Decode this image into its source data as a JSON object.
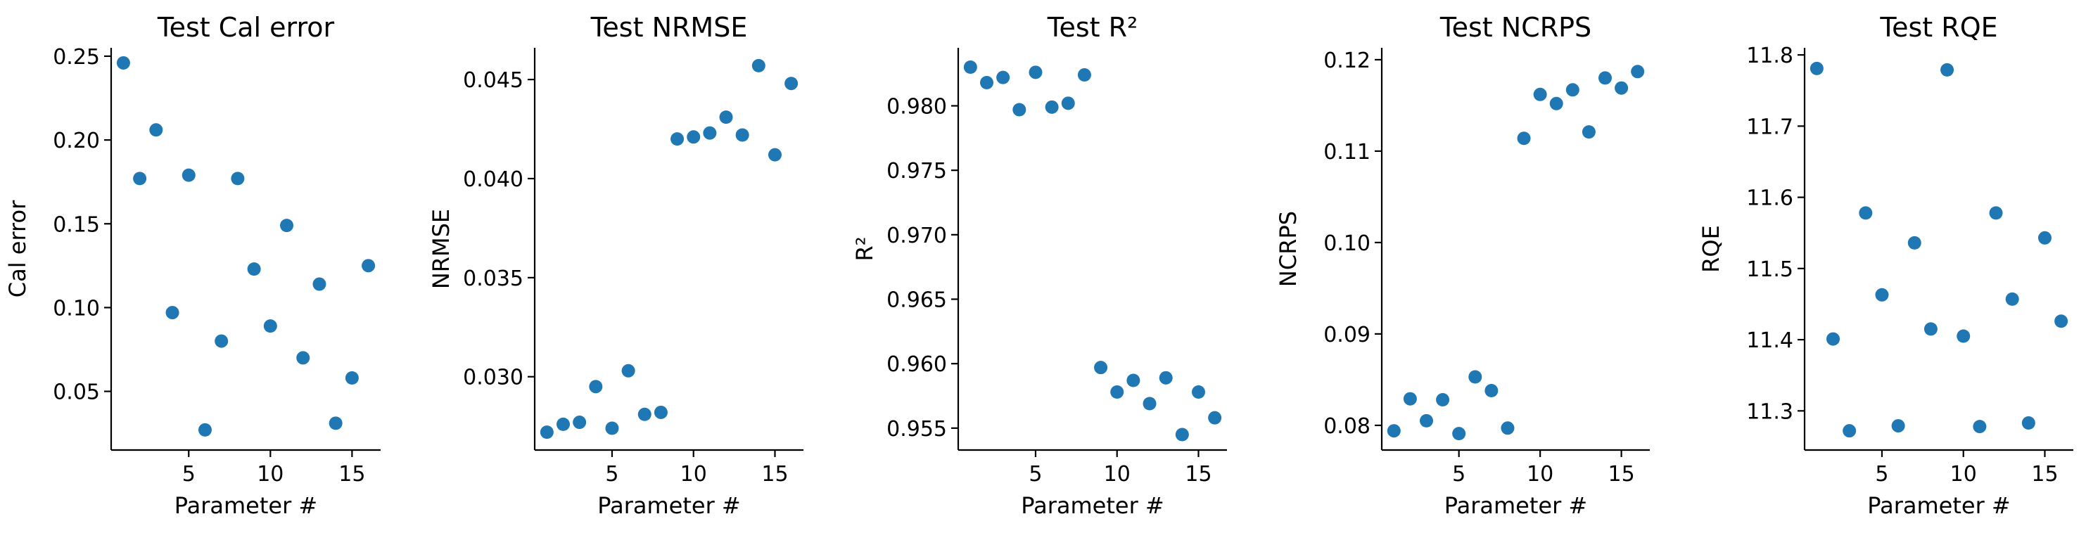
{
  "figure": {
    "marker_color": "#1f77b4"
  },
  "chart_data": [
    {
      "type": "scatter",
      "title": "Test Cal error",
      "xlabel": "Parameter #",
      "ylabel": "Cal error",
      "xlim": [
        0.25,
        16.75
      ],
      "ylim": [
        0.015,
        0.255
      ],
      "x_ticks": [
        5,
        10,
        15
      ],
      "y_ticks": [
        0.05,
        0.1,
        0.15,
        0.2,
        0.25
      ],
      "y_tick_labels": [
        "0.05",
        "0.10",
        "0.15",
        "0.20",
        "0.25"
      ],
      "series": [
        {
          "x": [
            1,
            2,
            3,
            4,
            5,
            6,
            7,
            8,
            9,
            10,
            11,
            12,
            13,
            14,
            15,
            16
          ],
          "y": [
            0.246,
            0.177,
            0.206,
            0.097,
            0.179,
            0.027,
            0.08,
            0.177,
            0.123,
            0.089,
            0.149,
            0.07,
            0.114,
            0.031,
            0.058,
            0.125
          ]
        }
      ]
    },
    {
      "type": "scatter",
      "title": "Test NRMSE",
      "xlabel": "Parameter #",
      "ylabel": "NRMSE",
      "xlim": [
        0.25,
        16.75
      ],
      "ylim": [
        0.0263,
        0.0466
      ],
      "x_ticks": [
        5,
        10,
        15
      ],
      "y_ticks": [
        0.03,
        0.035,
        0.04,
        0.045
      ],
      "y_tick_labels": [
        "0.030",
        "0.035",
        "0.040",
        "0.045"
      ],
      "series": [
        {
          "x": [
            1,
            2,
            3,
            4,
            5,
            6,
            7,
            8,
            9,
            10,
            11,
            12,
            13,
            14,
            15,
            16
          ],
          "y": [
            0.0272,
            0.0276,
            0.0277,
            0.0295,
            0.0274,
            0.0303,
            0.0281,
            0.0282,
            0.042,
            0.0421,
            0.0423,
            0.0431,
            0.0422,
            0.0457,
            0.0412,
            0.0448
          ]
        }
      ]
    },
    {
      "type": "scatter",
      "title": "Test R²",
      "xlabel": "Parameter #",
      "ylabel": "R²",
      "xlim": [
        0.25,
        16.75
      ],
      "ylim": [
        0.9533,
        0.9845
      ],
      "x_ticks": [
        5,
        10,
        15
      ],
      "y_ticks": [
        0.955,
        0.96,
        0.965,
        0.97,
        0.975,
        0.98
      ],
      "y_tick_labels": [
        "0.955",
        "0.960",
        "0.965",
        "0.970",
        "0.975",
        "0.980"
      ],
      "series": [
        {
          "x": [
            1,
            2,
            3,
            4,
            5,
            6,
            7,
            8,
            9,
            10,
            11,
            12,
            13,
            14,
            15,
            16
          ],
          "y": [
            0.983,
            0.9818,
            0.9822,
            0.9797,
            0.9826,
            0.9799,
            0.9802,
            0.9824,
            0.9597,
            0.9578,
            0.9587,
            0.9569,
            0.9589,
            0.9545,
            0.9578,
            0.9558
          ]
        }
      ]
    },
    {
      "type": "scatter",
      "title": "Test NCRPS",
      "xlabel": "Parameter #",
      "ylabel": "NCRPS",
      "xlim": [
        0.25,
        16.75
      ],
      "ylim": [
        0.0773,
        0.1213
      ],
      "x_ticks": [
        5,
        10,
        15
      ],
      "y_ticks": [
        0.08,
        0.09,
        0.1,
        0.11,
        0.12
      ],
      "y_tick_labels": [
        "0.08",
        "0.09",
        "0.10",
        "0.11",
        "0.12"
      ],
      "series": [
        {
          "x": [
            1,
            2,
            3,
            4,
            5,
            6,
            7,
            8,
            9,
            10,
            11,
            12,
            13,
            14,
            15,
            16
          ],
          "y": [
            0.0794,
            0.0829,
            0.0805,
            0.0828,
            0.0791,
            0.0853,
            0.0838,
            0.0797,
            0.1114,
            0.1162,
            0.1152,
            0.1167,
            0.1121,
            0.118,
            0.1169,
            0.1187
          ]
        }
      ]
    },
    {
      "type": "scatter",
      "title": "Test RQE",
      "xlabel": "Parameter #",
      "ylabel": "RQE",
      "xlim": [
        0.25,
        16.75
      ],
      "ylim": [
        11.245,
        11.81
      ],
      "x_ticks": [
        5,
        10,
        15
      ],
      "y_ticks": [
        11.3,
        11.4,
        11.5,
        11.6,
        11.7,
        11.8
      ],
      "y_tick_labels": [
        "11.3",
        "11.4",
        "11.5",
        "11.6",
        "11.7",
        "11.8"
      ],
      "series": [
        {
          "x": [
            1,
            2,
            3,
            4,
            5,
            6,
            7,
            8,
            9,
            10,
            11,
            12,
            13,
            14,
            15,
            16
          ],
          "y": [
            11.781,
            11.401,
            11.272,
            11.578,
            11.463,
            11.279,
            11.536,
            11.415,
            11.779,
            11.405,
            11.278,
            11.578,
            11.457,
            11.283,
            11.543,
            11.426
          ]
        }
      ]
    }
  ]
}
